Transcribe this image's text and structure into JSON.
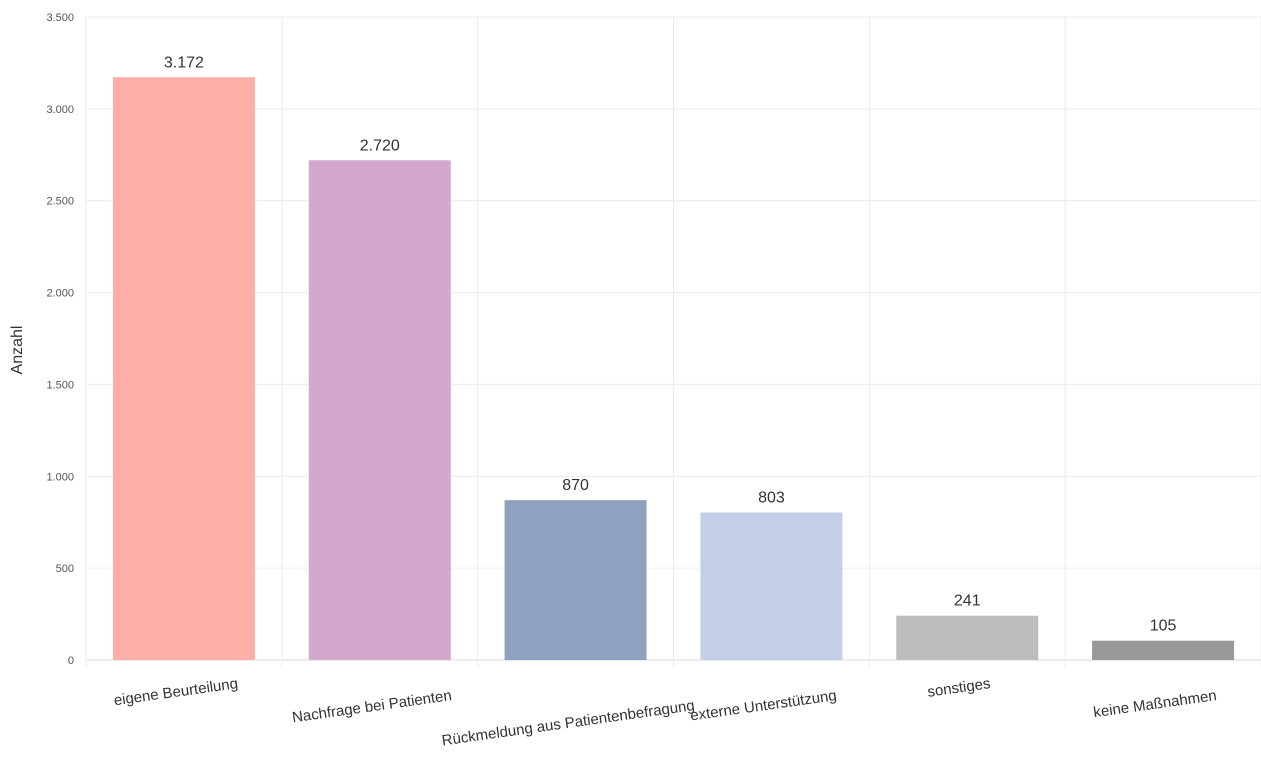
{
  "chart_data": {
    "type": "bar",
    "title": "",
    "xlabel": "",
    "ylabel": "Anzahl",
    "ylim": [
      0,
      3500
    ],
    "yticks": [
      {
        "value": 0,
        "label": "0"
      },
      {
        "value": 500,
        "label": "500"
      },
      {
        "value": 1000,
        "label": "1.000"
      },
      {
        "value": 1500,
        "label": "1.500"
      },
      {
        "value": 2000,
        "label": "2.000"
      },
      {
        "value": 2500,
        "label": "2.500"
      },
      {
        "value": 3000,
        "label": "3.000"
      },
      {
        "value": 3500,
        "label": "3.500"
      }
    ],
    "categories": [
      "eigene Beurteilung",
      "Nachfrage bei Patienten",
      "Rückmeldung aus Patientenbefragung",
      "externe Unterstützung",
      "sonstiges",
      "keine Maßnahmen"
    ],
    "values": [
      3172,
      2720,
      870,
      803,
      241,
      105
    ],
    "value_labels": [
      "3.172",
      "2.720",
      "870",
      "803",
      "241",
      "105"
    ],
    "colors": [
      "#fdaea6",
      "#d4a7cd",
      "#8ea2c0",
      "#c3cfe6",
      "#bdbdbd",
      "#999999"
    ],
    "grid": true,
    "legend": "none"
  }
}
